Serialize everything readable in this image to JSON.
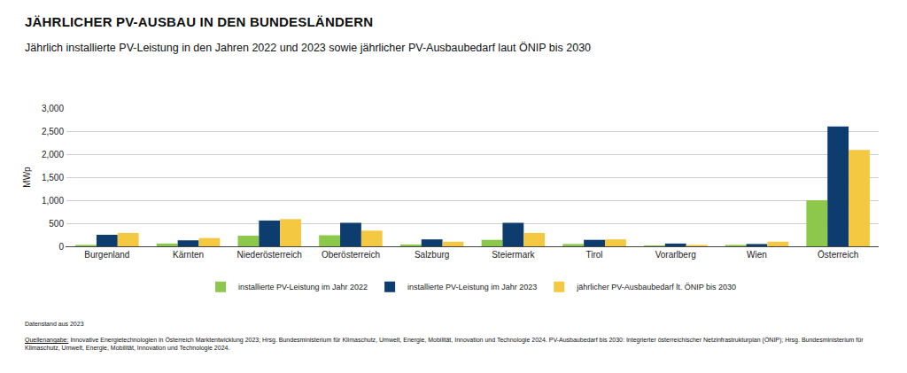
{
  "chart_data": {
    "type": "bar",
    "title": "JÄHRLICHER PV-AUSBAU IN DEN BUNDESLÄNDERN",
    "subtitle": "Jährlich installierte PV-Leistung in den Jahren 2022 und 2023 sowie jährlicher PV-Ausbaubedarf laut ÖNIP bis 2030",
    "ylabel": "MWp",
    "categories": [
      "Burgenland",
      "Kärnten",
      "Niederösterreich",
      "Oberösterreich",
      "Salzburg",
      "Steiermark",
      "Tirol",
      "Vorarlberg",
      "Wien",
      "Österreich"
    ],
    "series": [
      {
        "name": "installierte PV-Leistung im Jahr 2022",
        "color": "#8cc84b",
        "values": [
          30,
          60,
          230,
          240,
          40,
          140,
          50,
          20,
          30,
          1000
        ]
      },
      {
        "name": "installierte PV-Leistung im Jahr 2023",
        "color": "#0d3c6e",
        "values": [
          250,
          130,
          560,
          510,
          150,
          510,
          140,
          60,
          50,
          2600
        ]
      },
      {
        "name": "jährlicher PV-Ausbaubedarf lt. ÖNIP bis 2030",
        "color": "#f5c842",
        "values": [
          290,
          180,
          590,
          340,
          100,
          290,
          150,
          30,
          100,
          2090
        ]
      }
    ],
    "ylim": [
      0,
      3000
    ],
    "yticks": [
      0,
      500,
      {
        "value": 1000,
        "label": "1,000"
      },
      {
        "value": 1500,
        "label": "1,500"
      },
      {
        "value": 2000,
        "label": "2,000"
      },
      {
        "value": 2500,
        "label": "2,500"
      },
      {
        "value": 3000,
        "label": "3,000"
      }
    ],
    "grid": true,
    "legend": "bottom",
    "footnote": "Datenstand aus 2023",
    "source": {
      "label": "Quellenangabe:",
      "text": "Innovative Energietechnologien in Österreich Marktentwicklung 2023; Hrsg. Bundesministerium für Klimaschutz, Umwelt, Energie, Mobilität, Innovation und Technologie 2024. PV-Ausbaubedarf bis 2030: Integrierter österreichischer Netzinfrastrukturplan (ÖNIP); Hrsg. Bundesministerium für Klimaschutz, Umwelt, Energie, Mobilität, Innovation und Technologie 2024."
    }
  }
}
